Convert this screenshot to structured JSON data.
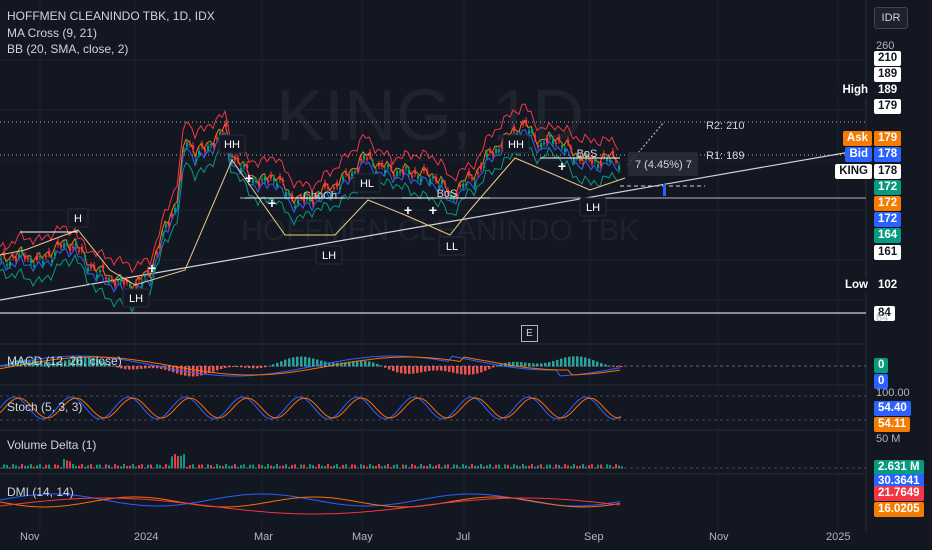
{
  "header": {
    "symbol_line": "HOFFMEN CLEANINDO TBK, 1D, IDX",
    "indicator_1": "MA Cross (9, 21)",
    "indicator_2": "BB (20, SMA, close, 2)"
  },
  "watermark": {
    "ticker": "KING, 1D",
    "name": "HOFFMEN CLEANINDO TBK"
  },
  "currency_label": "IDR",
  "e_label": "E",
  "price_axis": {
    "ticks": [
      "260",
      "84"
    ],
    "tags": [
      {
        "text": "210",
        "bg": "#ffffff",
        "fg": "#131722"
      },
      {
        "text": "189",
        "bg": "#ffffff",
        "fg": "#131722"
      },
      {
        "text": "189",
        "bg": "#131722",
        "fg": "#ffffff",
        "side": "High"
      },
      {
        "text": "179",
        "bg": "#ffffff",
        "fg": "#131722"
      },
      {
        "text": "179",
        "bg": "#f57c00",
        "fg": "#ffffff"
      },
      {
        "text": "179",
        "bg": "#f57c00",
        "fg": "#ffffff",
        "side": "Ask"
      },
      {
        "text": "178",
        "bg": "#2962ff",
        "fg": "#ffffff",
        "side": "Bid"
      },
      {
        "text": "178",
        "bg": "#ffffff",
        "fg": "#131722",
        "side": "KING"
      },
      {
        "text": "172",
        "bg": "#089981",
        "fg": "#ffffff"
      },
      {
        "text": "172",
        "bg": "#f57c00",
        "fg": "#ffffff"
      },
      {
        "text": "172",
        "bg": "#2962ff",
        "fg": "#ffffff"
      },
      {
        "text": "164",
        "bg": "#089981",
        "fg": "#ffffff"
      },
      {
        "text": "161",
        "bg": "#ffffff",
        "fg": "#131722"
      },
      {
        "text": "102",
        "bg": "#131722",
        "fg": "#ffffff",
        "side": "Low"
      },
      {
        "text": "84",
        "bg": "#ffffff",
        "fg": "#131722"
      }
    ]
  },
  "annotations": {
    "r2": "R2: 210",
    "r1": "R1: 189",
    "move": "7 (4.45%) 7",
    "bos": "BoS",
    "choch": "ChoCh",
    "hh": "HH",
    "hl": "HL",
    "lh": "LH",
    "ll": "LL",
    "h": "H"
  },
  "panes": {
    "macd": {
      "label": "MACD (12, 26, close)",
      "tags": [
        "0",
        "0"
      ]
    },
    "stoch": {
      "label": "Stoch (5, 3, 3)",
      "ticks": [
        "100.00"
      ],
      "tags": [
        "54.40",
        "54.11"
      ]
    },
    "volume": {
      "label": "Volume Delta (1)",
      "ticks": [
        "50 M"
      ],
      "tags": [
        "2.631 M",
        "30.3641"
      ]
    },
    "dmi": {
      "label": "DMI (14, 14)",
      "tags": [
        "21.7649",
        "16.0205"
      ]
    }
  },
  "time_axis": [
    "Nov",
    "2024",
    "Mar",
    "May",
    "Jul",
    "Sep",
    "Nov",
    "2025"
  ],
  "colors": {
    "background": "#131722",
    "bull": "#089981",
    "bear": "#f23645",
    "ma_fast": "#f57c00",
    "ma_slow": "#2962ff",
    "bb": "#f23645",
    "bb_basis": "#2962ff"
  }
}
